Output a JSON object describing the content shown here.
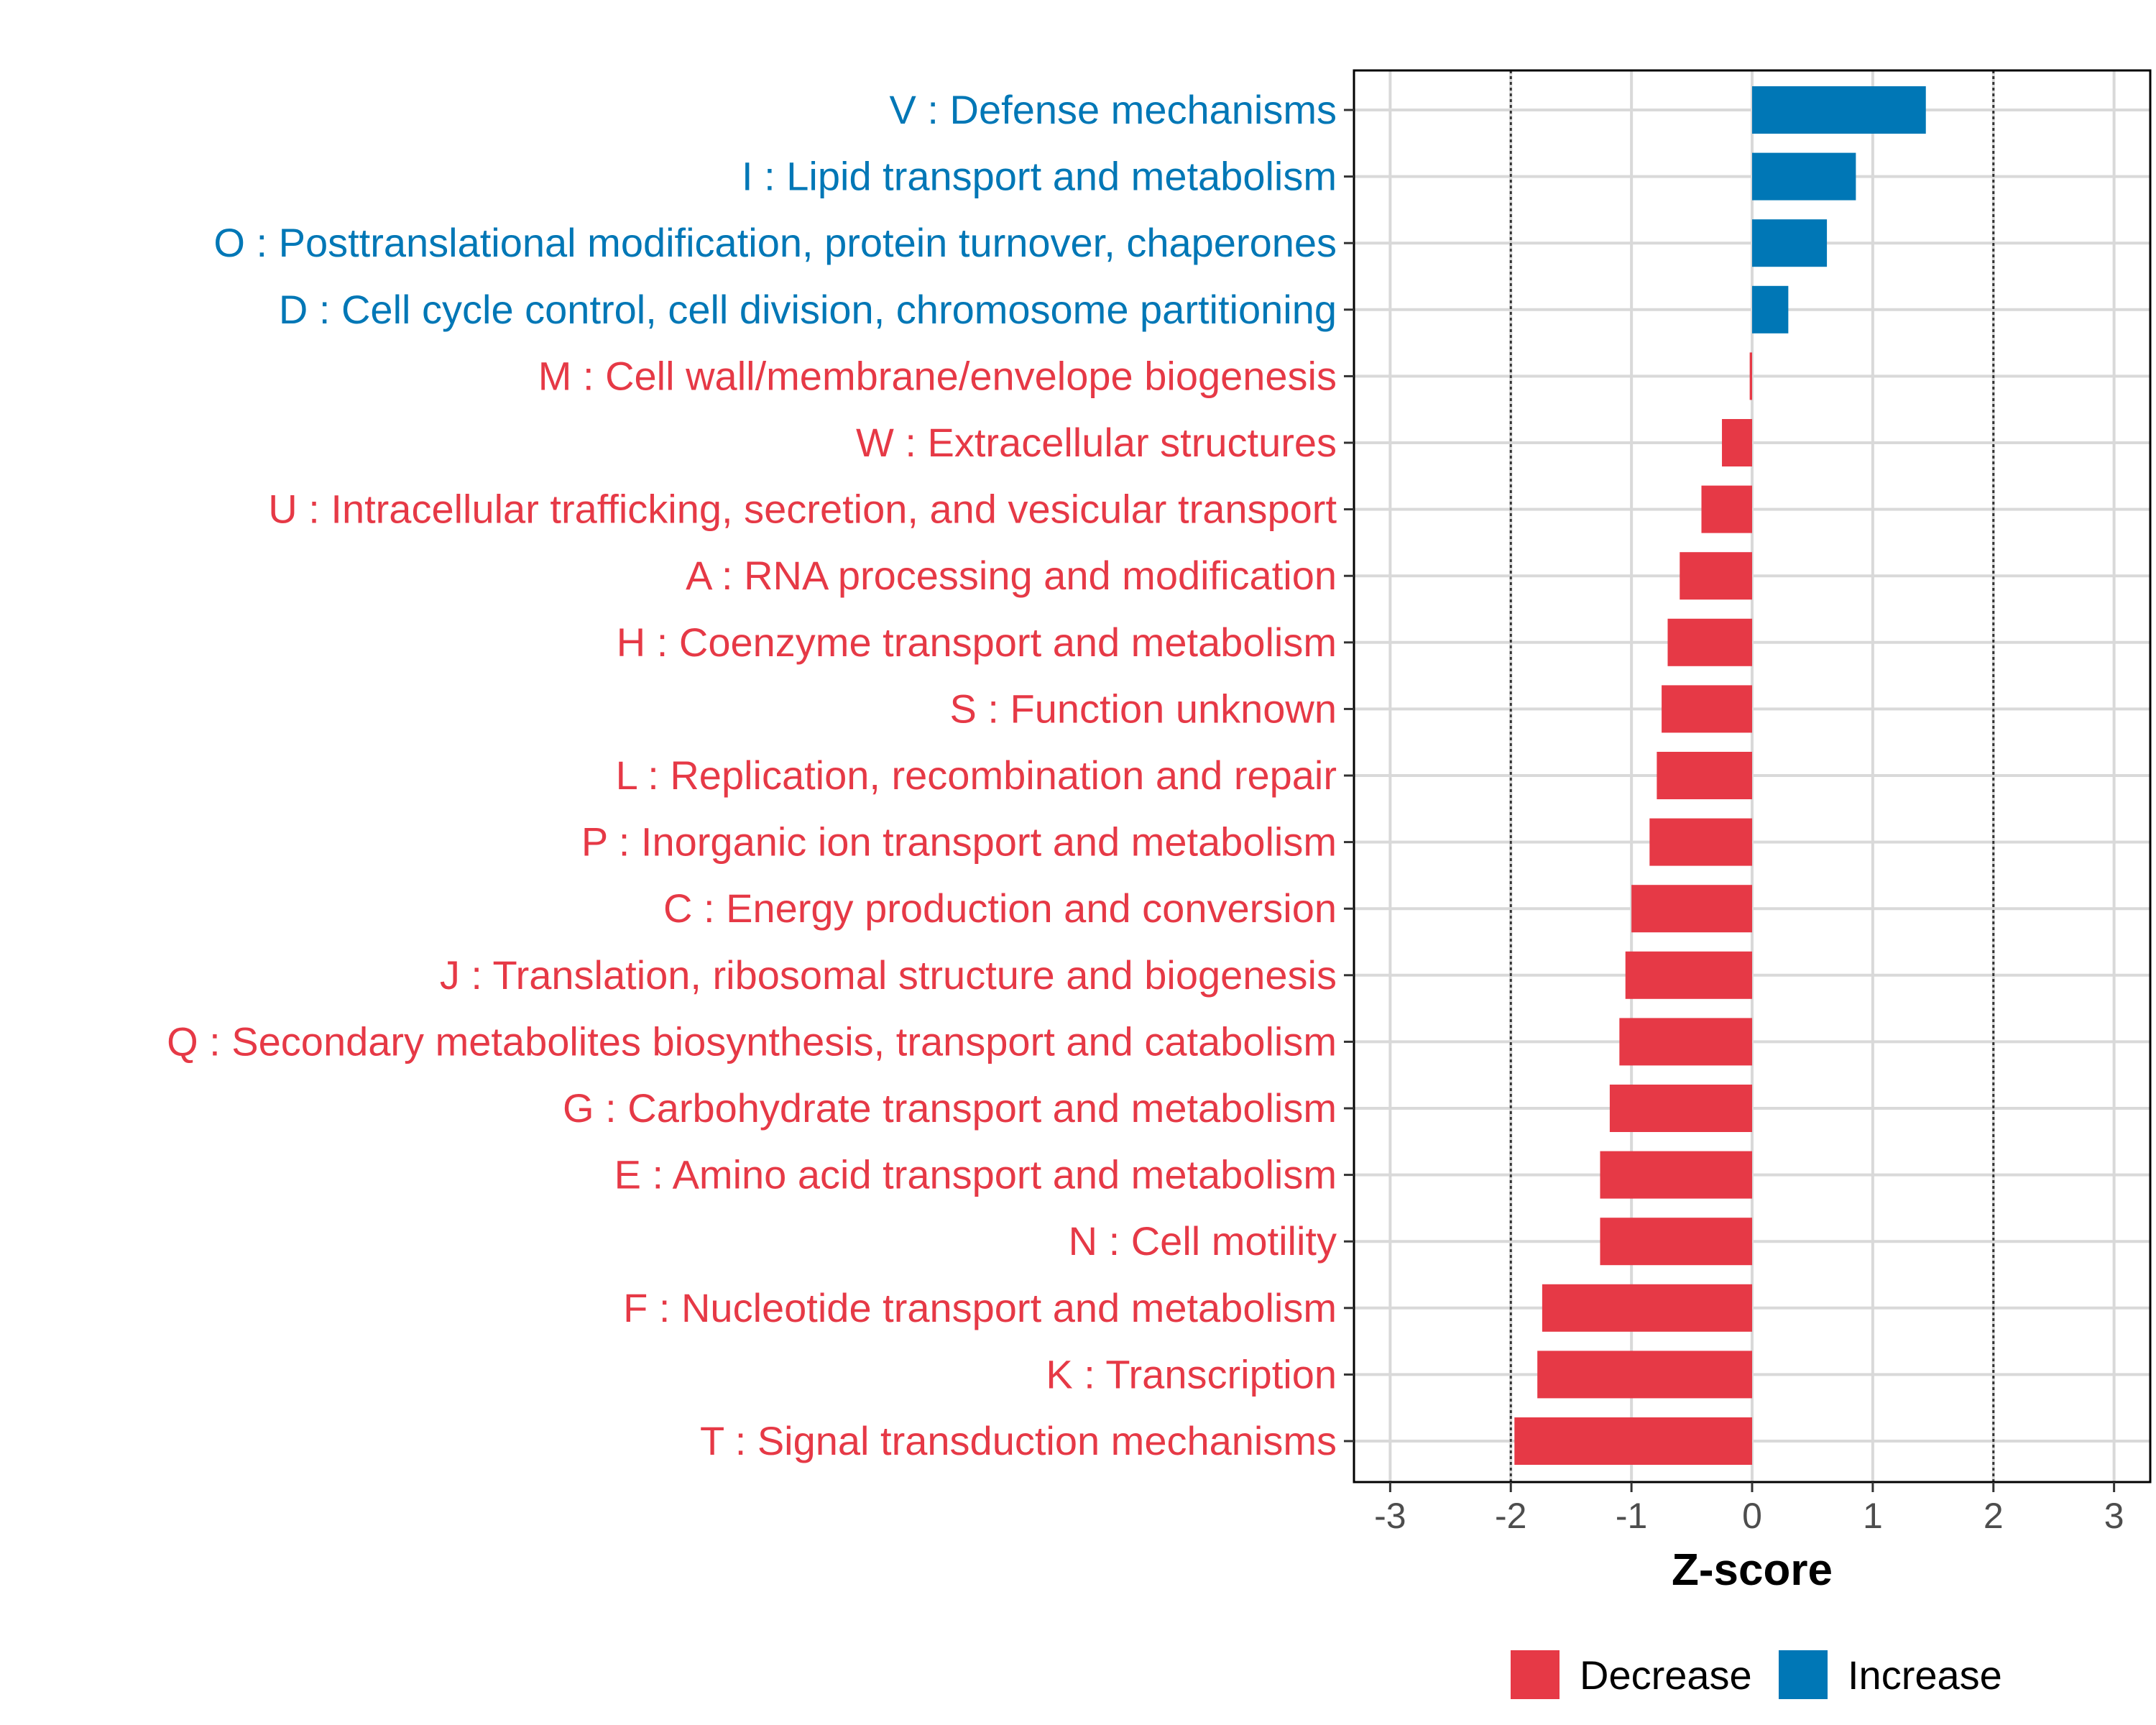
{
  "chart_data": {
    "type": "bar",
    "orientation": "horizontal",
    "xlabel": "Z-score",
    "ylabel": "",
    "xlim": [
      -3.3,
      3.3
    ],
    "xticks": [
      -3,
      -2,
      -1,
      0,
      1,
      2,
      3
    ],
    "reference_lines": [
      -2,
      2
    ],
    "grid": true,
    "categories": [
      "V : Defense mechanisms",
      "I : Lipid transport and metabolism",
      "O : Posttranslational modification, protein turnover, chaperones",
      "D : Cell cycle control, cell division, chromosome partitioning",
      "M : Cell wall/membrane/envelope biogenesis",
      "W : Extracellular structures",
      "U : Intracellular trafficking, secretion, and vesicular transport",
      "A : RNA processing and modification",
      "H : Coenzyme transport and metabolism",
      "S : Function unknown",
      "L : Replication, recombination and repair",
      "P : Inorganic ion transport and metabolism",
      "C : Energy production and conversion",
      "J : Translation, ribosomal structure and biogenesis",
      "Q : Secondary metabolites biosynthesis, transport and catabolism",
      "G : Carbohydrate transport and metabolism",
      "E : Amino acid transport and metabolism",
      "N : Cell motility",
      "F : Nucleotide transport and metabolism",
      "K : Transcription",
      "T : Signal transduction mechanisms"
    ],
    "values": [
      1.44,
      0.86,
      0.62,
      0.3,
      -0.02,
      -0.25,
      -0.42,
      -0.6,
      -0.7,
      -0.75,
      -0.79,
      -0.85,
      -1.0,
      -1.05,
      -1.1,
      -1.18,
      -1.26,
      -1.26,
      -1.74,
      -1.78,
      -1.97
    ],
    "groups": [
      "Increase",
      "Increase",
      "Increase",
      "Increase",
      "Decrease",
      "Decrease",
      "Decrease",
      "Decrease",
      "Decrease",
      "Decrease",
      "Decrease",
      "Decrease",
      "Decrease",
      "Decrease",
      "Decrease",
      "Decrease",
      "Decrease",
      "Decrease",
      "Decrease",
      "Decrease",
      "Decrease"
    ],
    "legend": [
      {
        "label": "Decrease",
        "color": "#e63946"
      },
      {
        "label": "Increase",
        "color": "#0077b6"
      }
    ],
    "legend_position": "bottom"
  },
  "colors": {
    "increase": "#0077b6",
    "decrease": "#e63946",
    "grid": "#d9d9d9"
  }
}
